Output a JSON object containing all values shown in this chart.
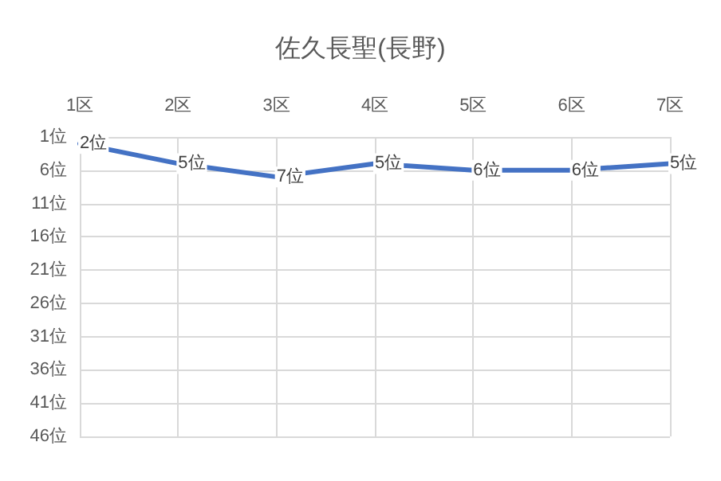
{
  "chart_data": {
    "type": "line",
    "title": "佐久長聖(長野)",
    "categories": [
      "1区",
      "2区",
      "3区",
      "4区",
      "5区",
      "6区",
      "7区"
    ],
    "series": [
      {
        "color": "#4472c4",
        "values": [
          2,
          5,
          7,
          5,
          6,
          6,
          5
        ],
        "value_labels": [
          "2位",
          "5位",
          "7位",
          "5位",
          "6位",
          "6位",
          "5位"
        ]
      }
    ],
    "ylim": [
      46,
      1
    ],
    "yticks": [
      {
        "value": 1,
        "label": "1位"
      },
      {
        "value": 6,
        "label": "6位"
      },
      {
        "value": 11,
        "label": "11位"
      },
      {
        "value": 16,
        "label": "16位"
      },
      {
        "value": 21,
        "label": "21位"
      },
      {
        "value": 26,
        "label": "26位"
      },
      {
        "value": 31,
        "label": "31位"
      },
      {
        "value": 36,
        "label": "36位"
      },
      {
        "value": 41,
        "label": "41位"
      },
      {
        "value": 46,
        "label": "46位"
      }
    ],
    "grid": true,
    "marker": "none",
    "line_style": "solid"
  }
}
